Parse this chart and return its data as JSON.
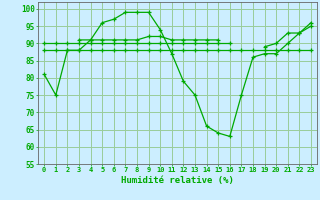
{
  "xlabel": "Humidité relative (%)",
  "background_color": "#cceeff",
  "grid_color": "#99cc99",
  "line_color": "#00aa00",
  "xlim": [
    -0.5,
    23.5
  ],
  "ylim": [
    55,
    102
  ],
  "yticks": [
    55,
    60,
    65,
    70,
    75,
    80,
    85,
    90,
    95,
    100
  ],
  "xticks": [
    0,
    1,
    2,
    3,
    4,
    5,
    6,
    7,
    8,
    9,
    10,
    11,
    12,
    13,
    14,
    15,
    16,
    17,
    18,
    19,
    20,
    21,
    22,
    23
  ],
  "series": [
    [
      81,
      75,
      88,
      88,
      91,
      96,
      97,
      99,
      99,
      99,
      94,
      87,
      79,
      75,
      66,
      64,
      63,
      75,
      86,
      87,
      87,
      90,
      93,
      96
    ],
    [
      88,
      88,
      88,
      88,
      88,
      88,
      88,
      88,
      88,
      88,
      88,
      88,
      88,
      88,
      88,
      88,
      88,
      88,
      88,
      88,
      88,
      88,
      88,
      88
    ],
    [
      90,
      90,
      90,
      90,
      90,
      90,
      90,
      90,
      90,
      90,
      90,
      90,
      90,
      90,
      90,
      90,
      90,
      null,
      null,
      null,
      null,
      null,
      null,
      null
    ],
    [
      null,
      null,
      null,
      91,
      91,
      91,
      91,
      91,
      91,
      92,
      92,
      91,
      91,
      91,
      91,
      91,
      null,
      null,
      null,
      null,
      null,
      null,
      null,
      null
    ],
    [
      null,
      null,
      null,
      null,
      null,
      null,
      null,
      null,
      null,
      null,
      null,
      null,
      null,
      null,
      null,
      null,
      null,
      null,
      null,
      89,
      90,
      93,
      93,
      95
    ]
  ]
}
